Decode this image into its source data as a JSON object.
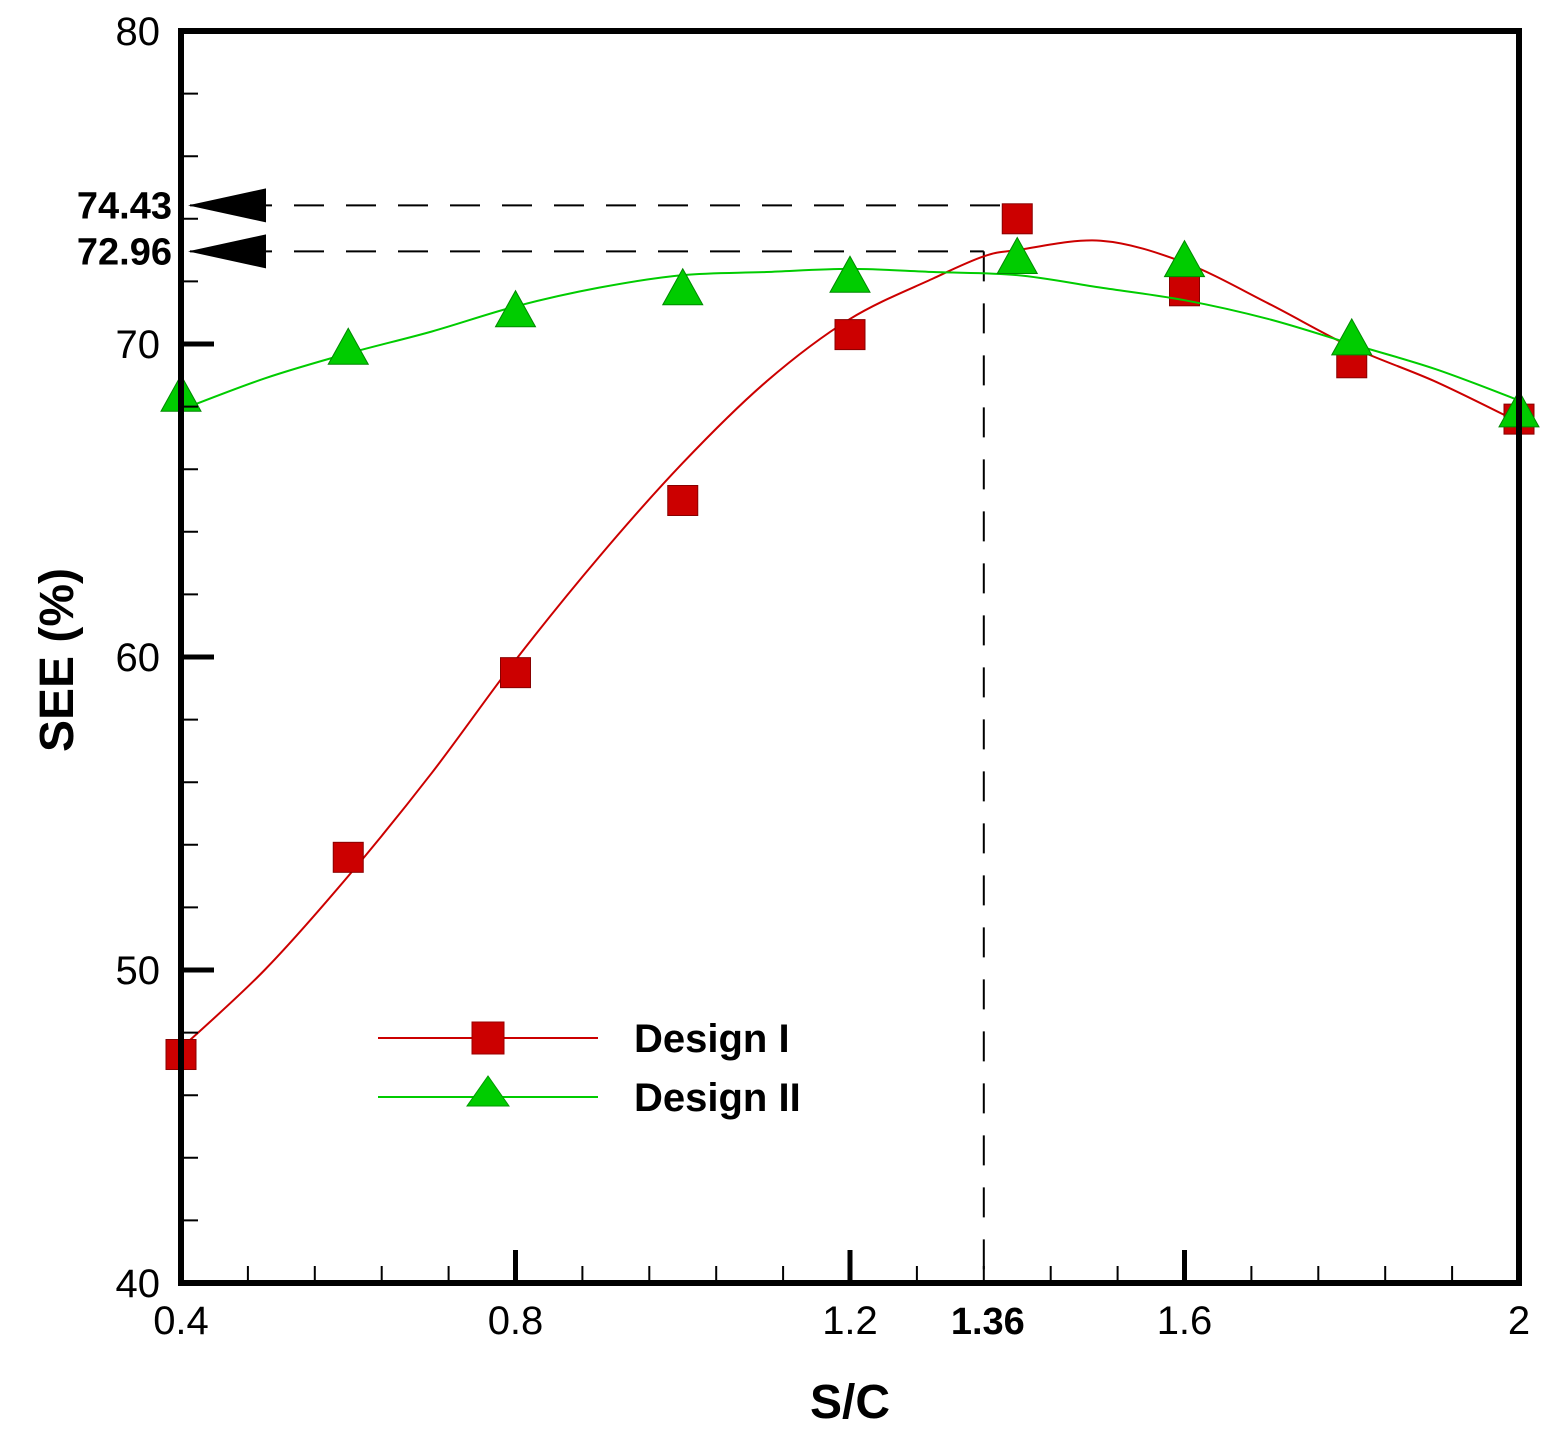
{
  "chart_data": {
    "type": "line",
    "xlabel": "S/C",
    "ylabel": "SEE (%)",
    "xlim": [
      0.4,
      2.0
    ],
    "ylim": [
      40,
      80
    ],
    "x_ticks": [
      0.4,
      0.8,
      1.2,
      1.6,
      2.0
    ],
    "x_tick_labels": [
      "0.4",
      "0.8",
      "1.2",
      "1.6",
      "2"
    ],
    "x_minor_step": 0.08,
    "y_ticks": [
      40,
      50,
      60,
      70,
      80
    ],
    "y_tick_labels": [
      "40",
      "50",
      "60",
      "70",
      "80"
    ],
    "y_minor_step": 2,
    "legend_position": "lower-center",
    "series": [
      {
        "name": "Design I",
        "color": "#cc0000",
        "marker": "square",
        "x": [
          0.4,
          0.6,
          0.8,
          1.0,
          1.2,
          1.4,
          1.6,
          1.8,
          2.0
        ],
        "y": [
          47.3,
          53.6,
          59.5,
          65.0,
          70.3,
          74.0,
          71.7,
          69.4,
          67.6
        ],
        "curve": [
          [
            0.4,
            47.5
          ],
          [
            0.5,
            50.0
          ],
          [
            0.6,
            53.0
          ],
          [
            0.7,
            56.3
          ],
          [
            0.8,
            59.9
          ],
          [
            0.9,
            63.2
          ],
          [
            1.0,
            66.2
          ],
          [
            1.1,
            68.8
          ],
          [
            1.2,
            70.8
          ],
          [
            1.3,
            72.1
          ],
          [
            1.36,
            72.8
          ],
          [
            1.4,
            73.0
          ],
          [
            1.5,
            73.3
          ],
          [
            1.6,
            72.6
          ],
          [
            1.7,
            71.3
          ],
          [
            1.8,
            69.9
          ],
          [
            1.9,
            68.8
          ],
          [
            2.0,
            67.5
          ]
        ]
      },
      {
        "name": "Design II",
        "color": "#00cc00",
        "marker": "triangle",
        "x": [
          0.4,
          0.6,
          0.8,
          1.0,
          1.2,
          1.4,
          1.6,
          1.8,
          2.0
        ],
        "y": [
          68.3,
          69.8,
          71.0,
          71.7,
          72.1,
          72.7,
          72.6,
          70.1,
          67.8
        ],
        "curve": [
          [
            0.4,
            67.9
          ],
          [
            0.5,
            68.9
          ],
          [
            0.6,
            69.7
          ],
          [
            0.7,
            70.4
          ],
          [
            0.8,
            71.2
          ],
          [
            0.9,
            71.8
          ],
          [
            1.0,
            72.2
          ],
          [
            1.1,
            72.3
          ],
          [
            1.2,
            72.4
          ],
          [
            1.3,
            72.3
          ],
          [
            1.4,
            72.2
          ],
          [
            1.5,
            71.8
          ],
          [
            1.6,
            71.4
          ],
          [
            1.7,
            70.8
          ],
          [
            1.8,
            70.0
          ],
          [
            1.9,
            69.2
          ],
          [
            2.0,
            68.2
          ]
        ]
      }
    ],
    "annotations": {
      "hlines": [
        {
          "y": 74.43,
          "label": "74.43",
          "x_end": 1.4
        },
        {
          "y": 72.96,
          "label": "72.96",
          "x_end": 1.36
        }
      ],
      "vline": {
        "x": 1.36,
        "label": "1.36"
      }
    }
  }
}
